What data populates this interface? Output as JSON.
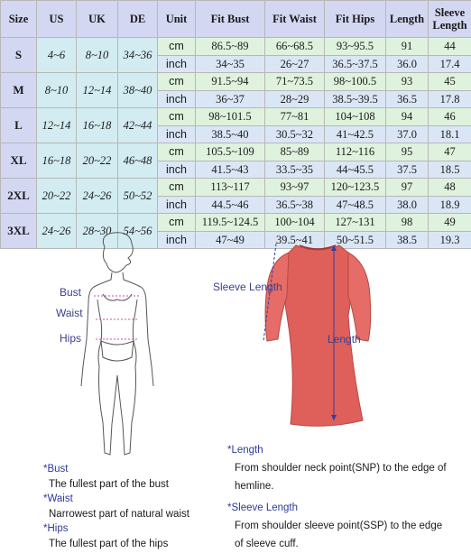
{
  "table": {
    "headers": [
      "Size",
      "US",
      "UK",
      "DE",
      "Unit",
      "Fit Bust",
      "Fit Waist",
      "Fit Hips",
      "Length",
      "Sleeve\nLength"
    ],
    "rows": [
      {
        "size": "S",
        "us": "4~6",
        "uk": "8~10",
        "de": "34~36",
        "cm": [
          "cm",
          "86.5~89",
          "66~68.5",
          "93~95.5",
          "91",
          "44"
        ],
        "inch": [
          "inch",
          "34~35",
          "26~27",
          "36.5~37.5",
          "36.0",
          "17.4"
        ]
      },
      {
        "size": "M",
        "us": "8~10",
        "uk": "12~14",
        "de": "38~40",
        "cm": [
          "cm",
          "91.5~94",
          "71~73.5",
          "98~100.5",
          "93",
          "45"
        ],
        "inch": [
          "inch",
          "36~37",
          "28~29",
          "38.5~39.5",
          "36.5",
          "17.8"
        ]
      },
      {
        "size": "L",
        "us": "12~14",
        "uk": "16~18",
        "de": "42~44",
        "cm": [
          "cm",
          "98~101.5",
          "77~81",
          "104~108",
          "94",
          "46"
        ],
        "inch": [
          "inch",
          "38.5~40",
          "30.5~32",
          "41~42.5",
          "37.0",
          "18.1"
        ]
      },
      {
        "size": "XL",
        "us": "16~18",
        "uk": "20~22",
        "de": "46~48",
        "cm": [
          "cm",
          "105.5~109",
          "85~89",
          "112~116",
          "95",
          "47"
        ],
        "inch": [
          "inch",
          "41.5~43",
          "33.5~35",
          "44~45.5",
          "37.5",
          "18.5"
        ]
      },
      {
        "size": "2XL",
        "us": "20~22",
        "uk": "24~26",
        "de": "50~52",
        "cm": [
          "cm",
          "113~117",
          "93~97",
          "120~123.5",
          "97",
          "48"
        ],
        "inch": [
          "inch",
          "44.5~46",
          "36.5~38",
          "47~48.5",
          "38.0",
          "18.9"
        ]
      },
      {
        "size": "3XL",
        "us": "24~26",
        "uk": "28~30",
        "de": "54~56",
        "cm": [
          "cm",
          "119.5~124.5",
          "100~104",
          "127~131",
          "98",
          "49"
        ],
        "inch": [
          "inch",
          "47~49",
          "39.5~41",
          "50~51.5",
          "38.5",
          "19.3"
        ]
      }
    ]
  },
  "body_figure": {
    "bust": "Bust",
    "waist": "Waist",
    "hips": "Hips"
  },
  "dress_figure": {
    "sleeve_length": "Sleeve Length",
    "length": "Length",
    "dress_color": "#df5f5a"
  },
  "notes_left": [
    {
      "title": "*Bust",
      "text": "The fullest part of the bust"
    },
    {
      "title": "*Waist",
      "text": "Narrowest part of natural waist"
    },
    {
      "title": "*Hips",
      "text": "The fullest part of the hips"
    }
  ],
  "notes_right": [
    {
      "title": "*Length",
      "line1": "From shoulder neck point(SNP) to the edge of",
      "line2": "hemline."
    },
    {
      "title": "*Sleeve Length",
      "line1": "From shoulder sleeve point(SSP) to the edge",
      "line2": "of sleeve cuff."
    }
  ]
}
